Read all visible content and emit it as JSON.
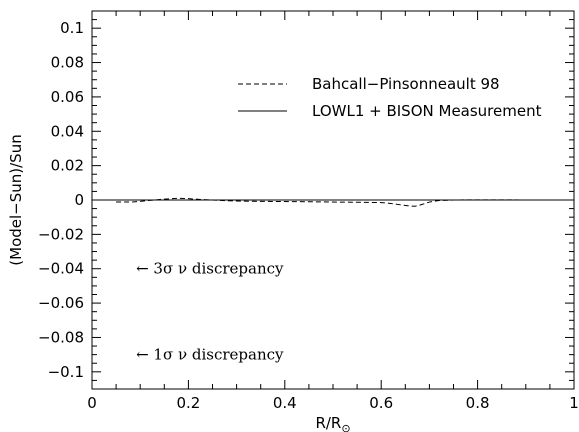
{
  "chart_data": {
    "type": "line",
    "xlabel": "R/R",
    "xlabel_sub": "⊙",
    "ylabel": "(Model−Sun)/Sun",
    "xlim": [
      0,
      1
    ],
    "ylim": [
      -0.11,
      0.11
    ],
    "x_ticks": [
      0,
      0.2,
      0.4,
      0.6,
      0.8,
      1
    ],
    "x_tick_labels": [
      "0",
      "0.2",
      "0.4",
      "0.6",
      "0.8",
      "1"
    ],
    "y_ticks": [
      -0.1,
      -0.08,
      -0.06,
      -0.04,
      -0.02,
      0,
      0.02,
      0.04,
      0.06,
      0.08,
      0.1
    ],
    "y_tick_labels": [
      "−0.1",
      "−0.08",
      "−0.06",
      "−0.04",
      "−0.02",
      "0",
      "0.02",
      "0.04",
      "0.06",
      "0.08",
      "0.1"
    ],
    "grid": false,
    "legend_position": "top-right",
    "series": [
      {
        "name": "Bahcall−Pinsonneault 98",
        "style": "dashed",
        "x": [
          0.05,
          0.08,
          0.1,
          0.12,
          0.15,
          0.18,
          0.2,
          0.22,
          0.25,
          0.28,
          0.3,
          0.35,
          0.4,
          0.45,
          0.5,
          0.55,
          0.6,
          0.62,
          0.64,
          0.66,
          0.67,
          0.68,
          0.7,
          0.72,
          0.75,
          0.8,
          0.85,
          0.9,
          0.95
        ],
        "y": [
          -0.0012,
          -0.0012,
          -0.0008,
          -0.0002,
          0.0005,
          0.001,
          0.0008,
          0.0004,
          0.0,
          -0.0004,
          -0.0006,
          -0.0008,
          -0.0009,
          -0.001,
          -0.0012,
          -0.0013,
          -0.0015,
          -0.002,
          -0.0028,
          -0.0035,
          -0.0036,
          -0.003,
          -0.0012,
          -0.0003,
          0.0,
          0.0001,
          0.0001,
          0.0,
          0.0
        ]
      },
      {
        "name": "LOWL1 + BISON Measurement",
        "style": "solid",
        "x": [
          0,
          1
        ],
        "y": [
          0,
          0
        ]
      }
    ],
    "annotations": [
      {
        "text": "← 3σ   ν discrepancy",
        "x": 0.05,
        "y": -0.04
      },
      {
        "text": "← 1σ   ν discrepancy",
        "x": 0.05,
        "y": -0.09
      }
    ]
  }
}
